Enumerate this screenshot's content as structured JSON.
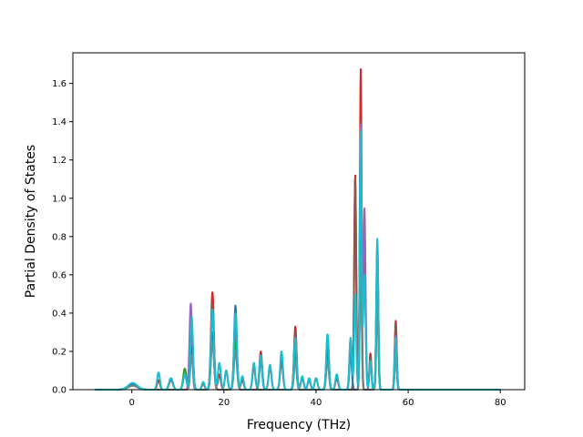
{
  "chart_data": {
    "type": "line",
    "title": "",
    "xlabel": "Frequency (THz)",
    "ylabel": "Partial Density of States",
    "xlim": [
      -12.8,
      85.3
    ],
    "ylim": [
      0.0,
      1.76
    ],
    "x_ticks": [
      0,
      20,
      40,
      60,
      80
    ],
    "y_ticks": [
      0.0,
      0.2,
      0.4,
      0.6,
      0.8,
      1.0,
      1.2,
      1.4,
      1.6
    ],
    "grid": false,
    "legend": "none",
    "x_range_of_data": [
      -8,
      80
    ],
    "series": [
      {
        "color": "#d62728",
        "peaks": [
          [
            0.2,
            0.03,
            1.0
          ],
          [
            5.8,
            0.05,
            0.3
          ],
          [
            8.5,
            0.05,
            0.4
          ],
          [
            11.5,
            0.08,
            0.35
          ],
          [
            13,
            0.3,
            0.3
          ],
          [
            15.5,
            0.03,
            0.3
          ],
          [
            17.5,
            0.51,
            0.32
          ],
          [
            19,
            0.08,
            0.3
          ],
          [
            20.5,
            0.1,
            0.3
          ],
          [
            22.5,
            0.3,
            0.32
          ],
          [
            24,
            0.05,
            0.3
          ],
          [
            26.5,
            0.12,
            0.3
          ],
          [
            28,
            0.2,
            0.3
          ],
          [
            30,
            0.12,
            0.3
          ],
          [
            32.5,
            0.15,
            0.3
          ],
          [
            35.5,
            0.33,
            0.28
          ],
          [
            37,
            0.06,
            0.3
          ],
          [
            38.5,
            0.05,
            0.3
          ],
          [
            40,
            0.06,
            0.3
          ],
          [
            42.5,
            0.28,
            0.28
          ],
          [
            44.5,
            0.06,
            0.3
          ],
          [
            47.5,
            0.27,
            0.25
          ],
          [
            48.5,
            1.12,
            0.22
          ],
          [
            49.7,
            1.67,
            0.2
          ],
          [
            50.5,
            0.7,
            0.25
          ],
          [
            51.8,
            0.19,
            0.22
          ],
          [
            53.3,
            0.76,
            0.22
          ],
          [
            57.3,
            0.36,
            0.22
          ]
        ]
      },
      {
        "color": "#8c564b",
        "peaks": [
          [
            0.2,
            0.025,
            1.0
          ],
          [
            8.5,
            0.06,
            0.4
          ],
          [
            13,
            0.25,
            0.3
          ],
          [
            17.5,
            0.45,
            0.32
          ],
          [
            22.5,
            0.28,
            0.32
          ],
          [
            28,
            0.18,
            0.3
          ],
          [
            35.5,
            0.3,
            0.28
          ],
          [
            42.5,
            0.25,
            0.28
          ],
          [
            48.5,
            1.1,
            0.22
          ],
          [
            49.7,
            1.4,
            0.2
          ],
          [
            51.8,
            0.17,
            0.22
          ],
          [
            53.3,
            0.7,
            0.22
          ],
          [
            57.3,
            0.34,
            0.22
          ]
        ]
      },
      {
        "color": "#9467bd",
        "peaks": [
          [
            0.2,
            0.03,
            1.0
          ],
          [
            12.8,
            0.45,
            0.28
          ],
          [
            17.5,
            0.4,
            0.32
          ],
          [
            22.5,
            0.35,
            0.32
          ],
          [
            28,
            0.15,
            0.3
          ],
          [
            35.5,
            0.22,
            0.28
          ],
          [
            42.5,
            0.22,
            0.28
          ],
          [
            47.5,
            0.2,
            0.25
          ],
          [
            49.7,
            1.38,
            0.2
          ],
          [
            50.5,
            0.95,
            0.25
          ],
          [
            53.3,
            0.6,
            0.22
          ],
          [
            57.3,
            0.28,
            0.22
          ]
        ]
      },
      {
        "color": "#2ca02c",
        "peaks": [
          [
            0.2,
            0.03,
            1.0
          ],
          [
            11.5,
            0.11,
            0.35
          ],
          [
            13,
            0.2,
            0.3
          ],
          [
            17.5,
            0.3,
            0.32
          ],
          [
            22.5,
            0.25,
            0.32
          ],
          [
            35.5,
            0.2,
            0.28
          ],
          [
            42.5,
            0.2,
            0.28
          ],
          [
            49.7,
            0.8,
            0.2
          ],
          [
            53.3,
            0.5,
            0.22
          ],
          [
            57.3,
            0.2,
            0.22
          ]
        ]
      },
      {
        "color": "#1f77b4",
        "peaks": [
          [
            0.2,
            0.03,
            1.0
          ],
          [
            13,
            0.22,
            0.3
          ],
          [
            17.5,
            0.3,
            0.32
          ],
          [
            22.5,
            0.44,
            0.3
          ],
          [
            28,
            0.16,
            0.3
          ],
          [
            35.5,
            0.18,
            0.28
          ],
          [
            42.5,
            0.22,
            0.28
          ],
          [
            47.5,
            0.2,
            0.25
          ],
          [
            49.7,
            0.9,
            0.2
          ],
          [
            53.3,
            0.55,
            0.22
          ],
          [
            57.3,
            0.22,
            0.22
          ]
        ]
      },
      {
        "color": "#7f7f7f",
        "peaks": [
          [
            0.2,
            0.02,
            1.0
          ],
          [
            13,
            0.18,
            0.3
          ],
          [
            17.5,
            0.25,
            0.32
          ],
          [
            22.5,
            0.2,
            0.32
          ],
          [
            35.5,
            0.15,
            0.28
          ],
          [
            42.5,
            0.15,
            0.28
          ],
          [
            49.7,
            0.7,
            0.2
          ],
          [
            53.3,
            0.45,
            0.22
          ],
          [
            57.3,
            0.18,
            0.22
          ]
        ]
      },
      {
        "color": "#17becf",
        "peaks": [
          [
            0.2,
            0.035,
            1.0
          ],
          [
            5.8,
            0.09,
            0.3
          ],
          [
            8.5,
            0.06,
            0.4
          ],
          [
            11.5,
            0.08,
            0.35
          ],
          [
            13,
            0.38,
            0.28
          ],
          [
            15.5,
            0.04,
            0.3
          ],
          [
            17.5,
            0.42,
            0.32
          ],
          [
            19,
            0.14,
            0.3
          ],
          [
            20.5,
            0.1,
            0.3
          ],
          [
            22.5,
            0.4,
            0.3
          ],
          [
            24,
            0.07,
            0.3
          ],
          [
            26.5,
            0.14,
            0.3
          ],
          [
            28,
            0.18,
            0.3
          ],
          [
            30,
            0.13,
            0.3
          ],
          [
            32.5,
            0.2,
            0.3
          ],
          [
            35.5,
            0.27,
            0.28
          ],
          [
            37,
            0.07,
            0.3
          ],
          [
            38.5,
            0.06,
            0.3
          ],
          [
            40,
            0.06,
            0.3
          ],
          [
            42.5,
            0.29,
            0.28
          ],
          [
            44.5,
            0.08,
            0.3
          ],
          [
            47.5,
            0.27,
            0.25
          ],
          [
            48.5,
            0.5,
            0.22
          ],
          [
            49.7,
            1.35,
            0.2
          ],
          [
            50.5,
            0.6,
            0.25
          ],
          [
            51.8,
            0.15,
            0.22
          ],
          [
            53.3,
            0.79,
            0.22
          ],
          [
            57.3,
            0.27,
            0.22
          ]
        ]
      }
    ]
  }
}
